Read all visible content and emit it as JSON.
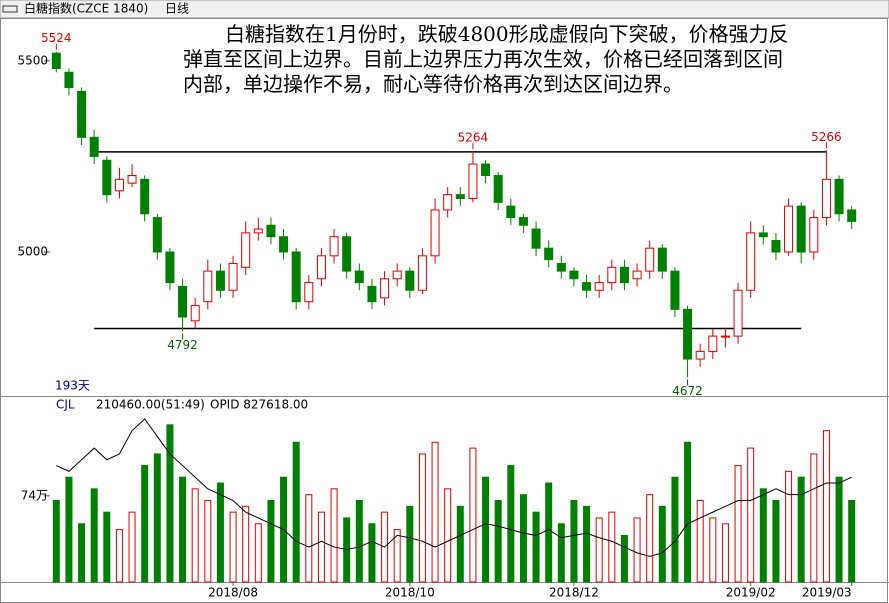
{
  "header": {
    "title": "白糖指数(CZCE 1840)",
    "period": "日线"
  },
  "chart_data": {
    "type": "candlestick",
    "annotation": "白糖指数在1月份时，跌破4800形成虚假向下突破，价格强力反弹直至区间上边界。目前上边界压力再次生效，价格已经回落到区间内部，单边操作不易，耐心等待价格再次到达区间边界。",
    "days_label": "193天",
    "categories": [
      null,
      null,
      null,
      null,
      null,
      null,
      null,
      null,
      null,
      null,
      null,
      null,
      null,
      null,
      "2018/08",
      null,
      null,
      null,
      null,
      null,
      null,
      null,
      null,
      null,
      null,
      null,
      null,
      null,
      "2018/10",
      null,
      null,
      null,
      null,
      null,
      null,
      null,
      null,
      null,
      null,
      null,
      null,
      "2018/12",
      null,
      null,
      null,
      null,
      null,
      null,
      null,
      null,
      null,
      null,
      null,
      null,
      null,
      "2019/02",
      null,
      null,
      null,
      null,
      null,
      null,
      null,
      "2019/03"
    ],
    "open": [
      5520,
      5470,
      5420,
      5300,
      5240,
      5160,
      5180,
      5190,
      5090,
      5000,
      4910,
      4820,
      4870,
      4950,
      4900,
      4960,
      5050,
      5070,
      5040,
      5000,
      4870,
      4930,
      4990,
      5040,
      4950,
      4910,
      4880,
      4930,
      4950,
      4900,
      4990,
      5110,
      5150,
      5140,
      5230,
      5200,
      5120,
      5090,
      5060,
      5010,
      4970,
      4950,
      4920,
      4900,
      4920,
      4960,
      4930,
      4950,
      5010,
      4950,
      4850,
      4720,
      4740,
      4780,
      4780,
      4900,
      5050,
      5030,
      5000,
      5120,
      5000,
      5090,
      5190,
      5110
    ],
    "high": [
      5524,
      5480,
      5430,
      5320,
      5250,
      5220,
      5230,
      5200,
      5100,
      5010,
      4930,
      4880,
      4980,
      4970,
      4990,
      5080,
      5090,
      5090,
      5060,
      5010,
      4940,
      5010,
      5060,
      5050,
      4970,
      4930,
      4950,
      4970,
      4960,
      5010,
      5140,
      5170,
      5170,
      5264,
      5240,
      5210,
      5140,
      5100,
      5080,
      5030,
      4990,
      4960,
      4940,
      4940,
      4980,
      4980,
      4970,
      5030,
      5020,
      4960,
      4860,
      4760,
      4800,
      4800,
      4920,
      5080,
      5070,
      5050,
      5140,
      5130,
      5110,
      5266,
      5200,
      5120
    ],
    "low": [
      5470,
      5410,
      5280,
      5230,
      5130,
      5140,
      5170,
      5080,
      4980,
      4900,
      4792,
      4800,
      4850,
      4880,
      4880,
      4940,
      5030,
      5020,
      4980,
      4850,
      4850,
      4910,
      4970,
      4930,
      4900,
      4850,
      4860,
      4910,
      4880,
      4890,
      4970,
      5090,
      5120,
      5130,
      5180,
      5110,
      5070,
      5050,
      4990,
      4960,
      4930,
      4910,
      4880,
      4880,
      4900,
      4900,
      4910,
      4930,
      4930,
      4830,
      4672,
      4700,
      4720,
      4750,
      4760,
      4880,
      5020,
      4980,
      4990,
      4970,
      4980,
      5070,
      5080,
      5060
    ],
    "close": [
      5480,
      5430,
      5300,
      5250,
      5150,
      5190,
      5200,
      5100,
      5000,
      4920,
      4830,
      4860,
      4950,
      4900,
      4970,
      5050,
      5060,
      5040,
      5000,
      4870,
      4920,
      4990,
      5040,
      4950,
      4920,
      4870,
      4930,
      4950,
      4900,
      4990,
      5110,
      5150,
      5140,
      5230,
      5200,
      5130,
      5090,
      5070,
      5010,
      4980,
      4950,
      4930,
      4900,
      4920,
      4960,
      4920,
      4950,
      5010,
      4950,
      4850,
      4720,
      4740,
      4780,
      4780,
      4900,
      5050,
      5040,
      5000,
      5120,
      5000,
      5090,
      5190,
      5100,
      5080
    ],
    "marked_highs": [
      0,
      33,
      61
    ],
    "marked_lows": [
      10,
      50
    ],
    "trend_lines": [
      {
        "value": 5262,
        "from": 3,
        "to": 61
      },
      {
        "value": 4800,
        "from": 3,
        "to": 59
      }
    ],
    "ylim": [
      4626,
      5612
    ],
    "yticks": [
      5000,
      5500
    ],
    "up_color": "#e00000",
    "down_color": "#008000",
    "volume": {
      "name": "CJL",
      "reading": "210460.00(51:49)",
      "extra": "OPID 827618.00",
      "values": [
        700000,
        900000,
        500000,
        800000,
        600000,
        450000,
        600000,
        1000000,
        1100000,
        1350000,
        900000,
        800000,
        700000,
        850000,
        600000,
        650000,
        500000,
        700000,
        900000,
        1200000,
        750000,
        600000,
        800000,
        550000,
        700000,
        500000,
        600000,
        450000,
        650000,
        1100000,
        1200000,
        800000,
        650000,
        1150000,
        900000,
        700000,
        1000000,
        750000,
        600000,
        850000,
        500000,
        700000,
        650000,
        550000,
        600000,
        400000,
        550000,
        750000,
        650000,
        900000,
        1200000,
        700000,
        550000,
        500000,
        1000000,
        1150000,
        800000,
        700000,
        950000,
        900000,
        1100000,
        1300000,
        900000,
        700000
      ],
      "average": [
        1000000,
        950000,
        1050000,
        1150000,
        1050000,
        1100000,
        1300000,
        1400000,
        1250000,
        1100000,
        1000000,
        900000,
        800000,
        750000,
        700000,
        600000,
        550000,
        500000,
        450000,
        350000,
        300000,
        350000,
        300000,
        280000,
        300000,
        350000,
        300000,
        400000,
        380000,
        350000,
        300000,
        350000,
        400000,
        450000,
        500000,
        480000,
        450000,
        420000,
        400000,
        450000,
        380000,
        400000,
        420000,
        380000,
        350000,
        300000,
        250000,
        220000,
        250000,
        350000,
        500000,
        550000,
        600000,
        650000,
        700000,
        700000,
        750000,
        800000,
        750000,
        750000,
        800000,
        850000,
        850000,
        900000
      ],
      "y2lim": [
        0,
        1460000
      ],
      "y2ticks": [
        {
          "value": 740000,
          "label": "74万"
        }
      ]
    }
  }
}
